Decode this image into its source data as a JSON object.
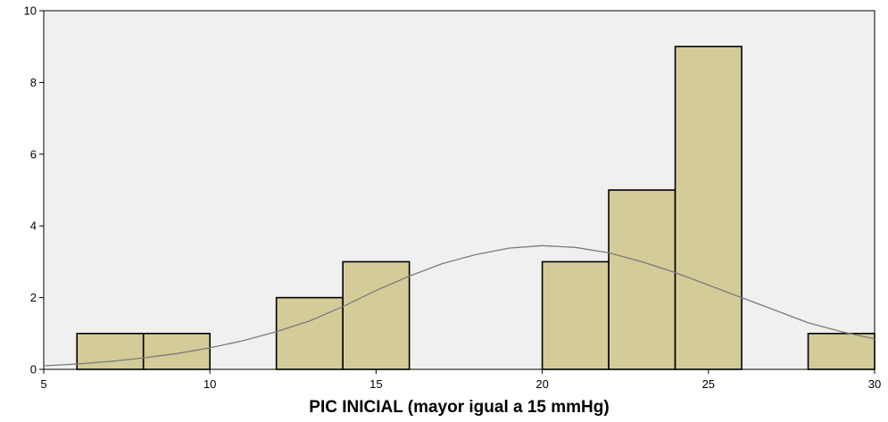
{
  "chart_data": {
    "type": "bar",
    "subtype": "histogram",
    "xlabel": "PIC INICIAL (mayor igual a 15 mmHg)",
    "ylabel": "",
    "xlim": [
      5,
      30
    ],
    "ylim": [
      0,
      10
    ],
    "x_ticks": [
      5,
      10,
      15,
      20,
      25,
      30
    ],
    "y_ticks": [
      0,
      2,
      4,
      6,
      8,
      10
    ],
    "bins": [
      {
        "x0": 6,
        "x1": 8,
        "count": 1
      },
      {
        "x0": 8,
        "x1": 10,
        "count": 1
      },
      {
        "x0": 12,
        "x1": 14,
        "count": 2
      },
      {
        "x0": 14,
        "x1": 16,
        "count": 3
      },
      {
        "x0": 20,
        "x1": 22,
        "count": 3
      },
      {
        "x0": 22,
        "x1": 24,
        "count": 5
      },
      {
        "x0": 24,
        "x1": 26,
        "count": 9
      },
      {
        "x0": 28,
        "x1": 30,
        "count": 1
      }
    ],
    "normal_curve": {
      "points": [
        [
          5,
          0.1
        ],
        [
          6,
          0.15
        ],
        [
          7,
          0.22
        ],
        [
          8,
          0.32
        ],
        [
          9,
          0.44
        ],
        [
          10,
          0.6
        ],
        [
          11,
          0.8
        ],
        [
          12,
          1.05
        ],
        [
          13,
          1.35
        ],
        [
          14,
          1.75
        ],
        [
          15,
          2.2
        ],
        [
          16,
          2.6
        ],
        [
          17,
          2.95
        ],
        [
          18,
          3.2
        ],
        [
          19,
          3.38
        ],
        [
          20,
          3.45
        ],
        [
          21,
          3.4
        ],
        [
          22,
          3.25
        ],
        [
          23,
          3.0
        ],
        [
          24,
          2.7
        ],
        [
          25,
          2.35
        ],
        [
          26,
          2.0
        ],
        [
          27,
          1.65
        ],
        [
          28,
          1.3
        ],
        [
          29,
          1.05
        ],
        [
          30,
          0.85
        ]
      ]
    },
    "grid": false,
    "legend": "none",
    "colors": {
      "bar_fill": "#d4cc98",
      "bar_stroke": "#000000",
      "plot_background": "#f0f0f0",
      "curve": "#7a7a7a"
    }
  }
}
